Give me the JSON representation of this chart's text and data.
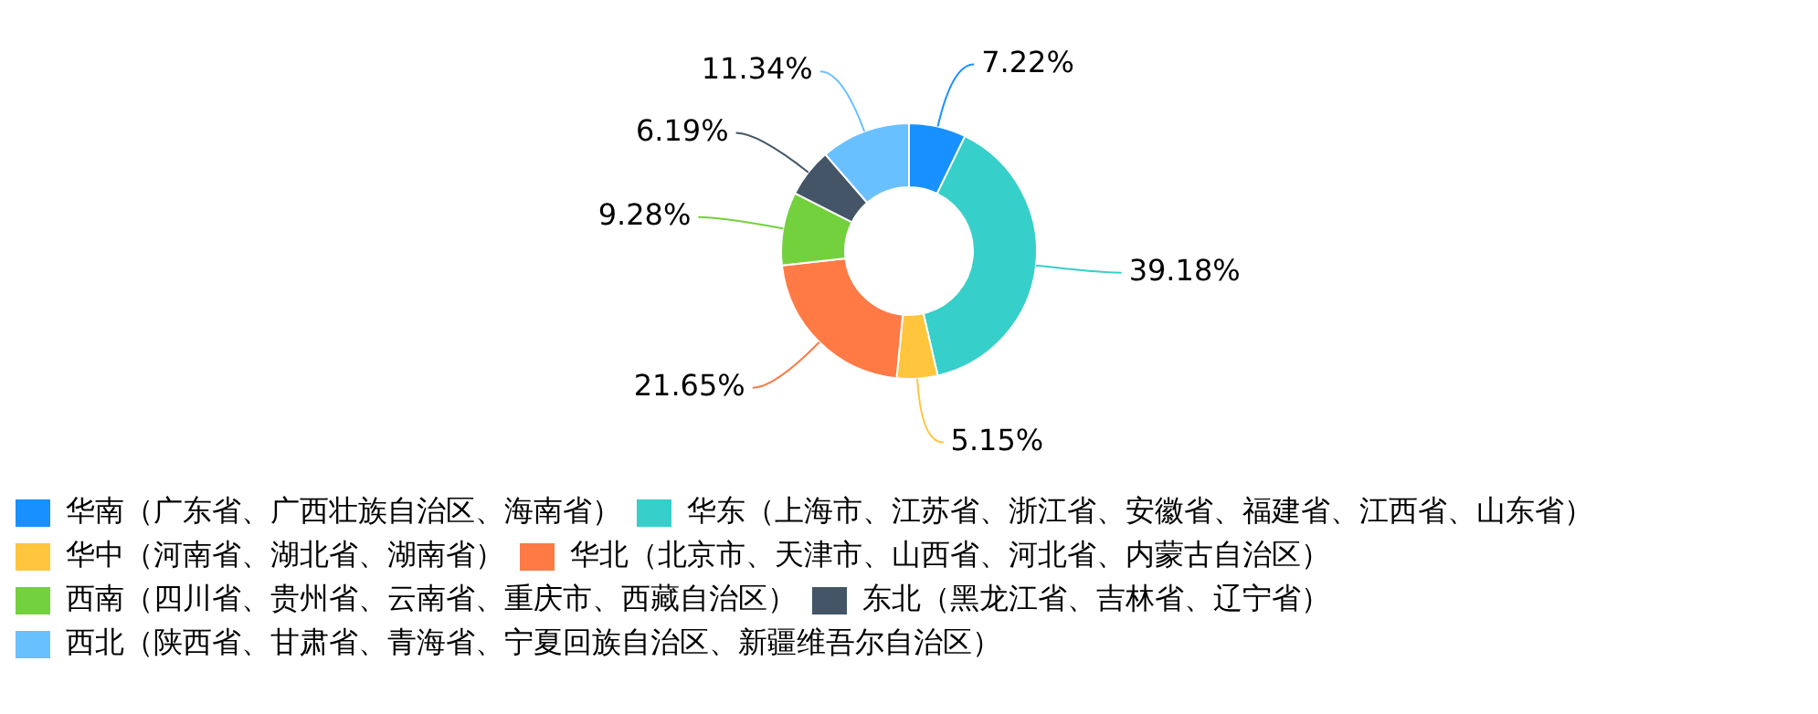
{
  "chart_data": {
    "type": "donut",
    "categories": [
      "华南（广东省、广西壮族自治区、海南省）",
      "华东（上海市、江苏省、浙江省、安徽省、福建省、江西省、山东省）",
      "华中（河南省、湖北省、湖南省）",
      "华北（北京市、天津市、山西省、河北省、内蒙古自治区）",
      "西南（四川省、贵州省、云南省、重庆市、西藏自治区）",
      "东北（黑龙江省、吉林省、辽宁省）",
      "西北（陕西省、甘肃省、青海省、宁夏回族自治区、新疆维吾尔自治区）"
    ],
    "values": [
      7.22,
      39.18,
      5.15,
      21.65,
      9.28,
      6.19,
      11.34
    ],
    "value_labels": [
      "7.22%",
      "39.18%",
      "5.15%",
      "21.65%",
      "9.28%",
      "6.19%",
      "11.34%"
    ],
    "colors": [
      "#1890ff",
      "#36cfc9",
      "#ffc53d",
      "#ff7a45",
      "#73d13d",
      "#435566",
      "#69c0ff"
    ],
    "legend": "bottom left"
  }
}
